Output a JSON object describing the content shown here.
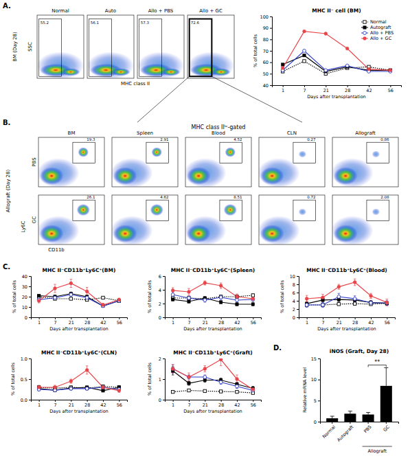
{
  "figure": {
    "panel_labels": [
      "A.",
      "B.",
      "C.",
      "D."
    ]
  },
  "chart_data": [
    {
      "type": "flow_cytometry",
      "row_group": "BM (Day 28)",
      "x_label": "MHC class II",
      "y_label": "SSC",
      "columns": [
        "Normal",
        "Auto",
        "Allo + PBS",
        "Allo + GC"
      ],
      "gate_values": [
        [
          55.2,
          56.1,
          57.3,
          72.6
        ]
      ],
      "tick_labels": false
    },
    {
      "type": "flow_cytometry",
      "title": "MHC class IIˡᵒ-gated",
      "row_group": "Allograft (Day 28)",
      "x_label": "CD11b",
      "y_label": "Ly6C",
      "columns": [
        "BM",
        "Spleen",
        "Blood",
        "CLN",
        "Allograft"
      ],
      "rows": [
        "PBS",
        "GC"
      ],
      "gate_values": [
        [
          19.3,
          2.91,
          4.52,
          0.27,
          0.86
        ],
        [
          26.1,
          4.62,
          8.51,
          0.72,
          2.08
        ]
      ],
      "tick_labels": false
    },
    {
      "type": "line",
      "title": "MHC II⁻ cell (BM)",
      "x_label": "Days after transplantation",
      "y_label": "% of total cells",
      "categories": [
        "1",
        "7",
        "21",
        "28",
        "42",
        "56"
      ],
      "ylim": [
        40,
        100
      ],
      "yticks": [
        40,
        50,
        60,
        70,
        80,
        90,
        100
      ],
      "legend": "upper right",
      "series": [
        {
          "name": "Normal",
          "color": "#000000",
          "marker": "square-open",
          "line_style": "dotted",
          "values": [
            52,
            61,
            50,
            55,
            56,
            53
          ]
        },
        {
          "name": "Autograft",
          "color": "#000000",
          "marker": "square",
          "line_style": "solid",
          "values": [
            58,
            66,
            52,
            56,
            53,
            53
          ]
        },
        {
          "name": "Allo + PBS",
          "color": "#2e3cc8",
          "marker": "circle-open",
          "line_style": "solid",
          "values": [
            53,
            70,
            53,
            57,
            52,
            52
          ]
        },
        {
          "name": "Allo + GC",
          "color": "#e8454a",
          "marker": "circle",
          "line_style": "solid",
          "values": [
            55,
            87,
            85,
            72,
            54,
            53
          ]
        }
      ]
    },
    {
      "type": "line",
      "title": "MHC II⁻CD11b⁺Ly6C⁺(BM)",
      "x_label": "Days after transplantation",
      "y_label": "% of total cells",
      "categories": [
        "1",
        "7",
        "21",
        "28",
        "42",
        "56"
      ],
      "ylim": [
        0,
        40
      ],
      "yticks": [
        0,
        10,
        20,
        30,
        40
      ],
      "series": [
        {
          "color": "#000000",
          "marker": "square-open",
          "line_style": "dotted",
          "values": [
            20,
            18,
            18,
            17,
            19,
            16
          ],
          "errors": [
            1,
            1,
            1,
            1,
            1,
            1
          ]
        },
        {
          "color": "#000000",
          "marker": "square",
          "line_style": "solid",
          "values": [
            21,
            20,
            23,
            20,
            11,
            16
          ],
          "errors": [
            1,
            1.5,
            1.5,
            1.5,
            1,
            1
          ]
        },
        {
          "color": "#2e3cc8",
          "marker": "circle-open",
          "line_style": "solid",
          "values": [
            17,
            19,
            22,
            19,
            11,
            16
          ],
          "errors": [
            1.5,
            2,
            2,
            2,
            1,
            1
          ]
        },
        {
          "color": "#e8454a",
          "marker": "circle",
          "line_style": "solid",
          "values": [
            16,
            28,
            33,
            25,
            12,
            17
          ],
          "errors": [
            2,
            4,
            4,
            4,
            1.5,
            1.5
          ]
        }
      ]
    },
    {
      "type": "line",
      "title": "MHC II⁻CD11b⁺Ly6C⁺(Spleen)",
      "x_label": "Days after transplantation",
      "y_label": "% of total cells",
      "categories": [
        "1",
        "7",
        "21",
        "28",
        "42",
        "56"
      ],
      "ylim": [
        0,
        6
      ],
      "yticks": [
        0,
        2,
        4,
        6
      ],
      "series": [
        {
          "color": "#000000",
          "marker": "square-open",
          "line_style": "dotted",
          "values": [
            2.8,
            2.8,
            2.7,
            3.0,
            3.0,
            3.2
          ],
          "errors": [
            0.2,
            0.2,
            0.2,
            0.2,
            0.2,
            0.2
          ]
        },
        {
          "color": "#000000",
          "marker": "square",
          "line_style": "solid",
          "values": [
            2.6,
            2.3,
            2.8,
            2.2,
            1.9,
            1.9
          ],
          "errors": [
            0.2,
            0.2,
            0.2,
            0.2,
            0.2,
            0.2
          ]
        },
        {
          "color": "#2e3cc8",
          "marker": "circle-open",
          "line_style": "solid",
          "values": [
            3.3,
            2.8,
            2.5,
            2.9,
            2.5,
            2.6
          ],
          "errors": [
            0.4,
            0.3,
            0.3,
            0.3,
            0.3,
            0.3
          ]
        },
        {
          "color": "#e8454a",
          "marker": "circle",
          "line_style": "solid",
          "values": [
            3.9,
            3.7,
            5.0,
            4.6,
            3.0,
            2.7
          ],
          "errors": [
            0.4,
            0.5,
            0.3,
            0.4,
            0.4,
            0.3
          ]
        }
      ]
    },
    {
      "type": "line",
      "title": "MHC II⁻CD11b⁺Ly6C⁺(Blood)",
      "x_label": "Days after transplantation",
      "y_label": "% of total cells",
      "categories": [
        "1",
        "7",
        "21",
        "28",
        "42",
        "56"
      ],
      "ylim": [
        0,
        10
      ],
      "yticks": [
        0,
        2,
        4,
        6,
        8,
        10
      ],
      "series": [
        {
          "color": "#000000",
          "marker": "square-open",
          "line_style": "dotted",
          "values": [
            3.0,
            3.0,
            3.2,
            3.3,
            3.2,
            3.4
          ],
          "errors": [
            0.3,
            0.3,
            0.3,
            0.3,
            0.3,
            0.3
          ]
        },
        {
          "color": "#000000",
          "marker": "square",
          "line_style": "solid",
          "values": [
            3.3,
            4.2,
            4.3,
            4.2,
            3.6,
            3.4
          ],
          "errors": [
            0.5,
            0.5,
            0.5,
            0.5,
            0.5,
            0.5
          ]
        },
        {
          "color": "#2e3cc8",
          "marker": "circle-open",
          "line_style": "solid",
          "values": [
            3.0,
            3.0,
            5.0,
            4.5,
            3.5,
            3.5
          ],
          "errors": [
            0.6,
            0.6,
            0.8,
            0.7,
            0.5,
            0.5
          ]
        },
        {
          "color": "#e8454a",
          "marker": "circle",
          "line_style": "solid",
          "values": [
            4.5,
            4.8,
            7.4,
            8.5,
            5.2,
            3.6
          ],
          "errors": [
            0.8,
            0.8,
            0.6,
            0.8,
            0.6,
            0.8
          ]
        }
      ]
    },
    {
      "type": "line",
      "title": "MHC II⁻CD11b⁺Ly6C⁺(CLN)",
      "x_label": "Days after transplantation",
      "y_label": "% of total cells",
      "categories": [
        "1",
        "7",
        "21",
        "28",
        "42",
        "56"
      ],
      "ylim": [
        0,
        1
      ],
      "yticks": [
        {
          "value": 0,
          "label": "0.0"
        },
        0.5,
        {
          "value": 1,
          "label": "1.0"
        }
      ],
      "series": [
        {
          "color": "#000000",
          "marker": "square-open",
          "line_style": "dotted",
          "values": [
            0.3,
            0.28,
            0.3,
            0.28,
            0.32,
            0.3
          ],
          "errors": [
            0.03,
            0.03,
            0.03,
            0.03,
            0.03,
            0.03
          ]
        },
        {
          "color": "#000000",
          "marker": "square",
          "line_style": "solid",
          "values": [
            0.27,
            0.23,
            0.28,
            0.3,
            0.22,
            0.3
          ],
          "errors": [
            0.03,
            0.03,
            0.03,
            0.03,
            0.03,
            0.03
          ]
        },
        {
          "color": "#2e3cc8",
          "marker": "circle-open",
          "line_style": "solid",
          "values": [
            0.25,
            0.23,
            0.27,
            0.27,
            0.3,
            0.25
          ],
          "errors": [
            0.04,
            0.04,
            0.04,
            0.04,
            0.04,
            0.04
          ]
        },
        {
          "color": "#e8454a",
          "marker": "circle",
          "line_style": "solid",
          "values": [
            0.3,
            0.3,
            0.45,
            0.72,
            0.3,
            0.22
          ],
          "errors": [
            0.05,
            0.05,
            0.05,
            0.1,
            0.05,
            0.04
          ]
        }
      ]
    },
    {
      "type": "line",
      "title": "MHC II⁻CD11b⁺Ly6C⁺(Graft)",
      "x_label": "Days after transplantation",
      "y_label": "% of total cells",
      "categories": [
        "1",
        "7",
        "21",
        "28",
        "42",
        "56"
      ],
      "ylim": [
        0,
        2
      ],
      "yticks": [
        0,
        1,
        2
      ],
      "series": [
        {
          "color": "#000000",
          "marker": "square-open",
          "line_style": "dotted",
          "values": [
            0.38,
            0.45,
            0.42,
            0.4,
            0.38,
            0.33
          ],
          "errors": [
            0.05,
            0.05,
            0.05,
            0.05,
            0.05,
            0.05
          ]
        },
        {
          "color": "#000000",
          "marker": "square",
          "line_style": "solid",
          "values": [
            1.4,
            0.8,
            0.95,
            0.95,
            0.75,
            0.55
          ],
          "errors": [
            0.2,
            0.1,
            0.1,
            0.1,
            0.1,
            0.1
          ]
        },
        {
          "color": "#2e3cc8",
          "marker": "circle-open",
          "line_style": "solid",
          "values": [
            1.5,
            1.1,
            1.1,
            0.85,
            0.65,
            0.45
          ],
          "errors": [
            0.2,
            0.1,
            0.1,
            0.1,
            0.1,
            0.1
          ]
        },
        {
          "color": "#e8454a",
          "marker": "circle",
          "line_style": "solid",
          "values": [
            1.5,
            1.1,
            1.5,
            1.95,
            1.0,
            0.5
          ],
          "errors": [
            0.2,
            0.2,
            0.15,
            0.3,
            0.2,
            0.1
          ]
        }
      ]
    },
    {
      "type": "bar",
      "title": "iNOS (Graft, Day 28)",
      "y_label": "Relative mRNA level",
      "categories": [
        "Normal",
        "Autograft",
        "PBS",
        "GC"
      ],
      "values": [
        0.8,
        1.9,
        1.7,
        8.5
      ],
      "errors": [
        0.5,
        0.6,
        0.5,
        4.3
      ],
      "color": "#000000",
      "ylim": [
        0,
        15
      ],
      "yticks": [
        0,
        5,
        10,
        15
      ],
      "group_label": "Allograft",
      "group_categories": [
        "PBS",
        "GC"
      ],
      "annotations": [
        {
          "text": "**",
          "between": [
            "PBS",
            "GC"
          ]
        }
      ]
    }
  ]
}
